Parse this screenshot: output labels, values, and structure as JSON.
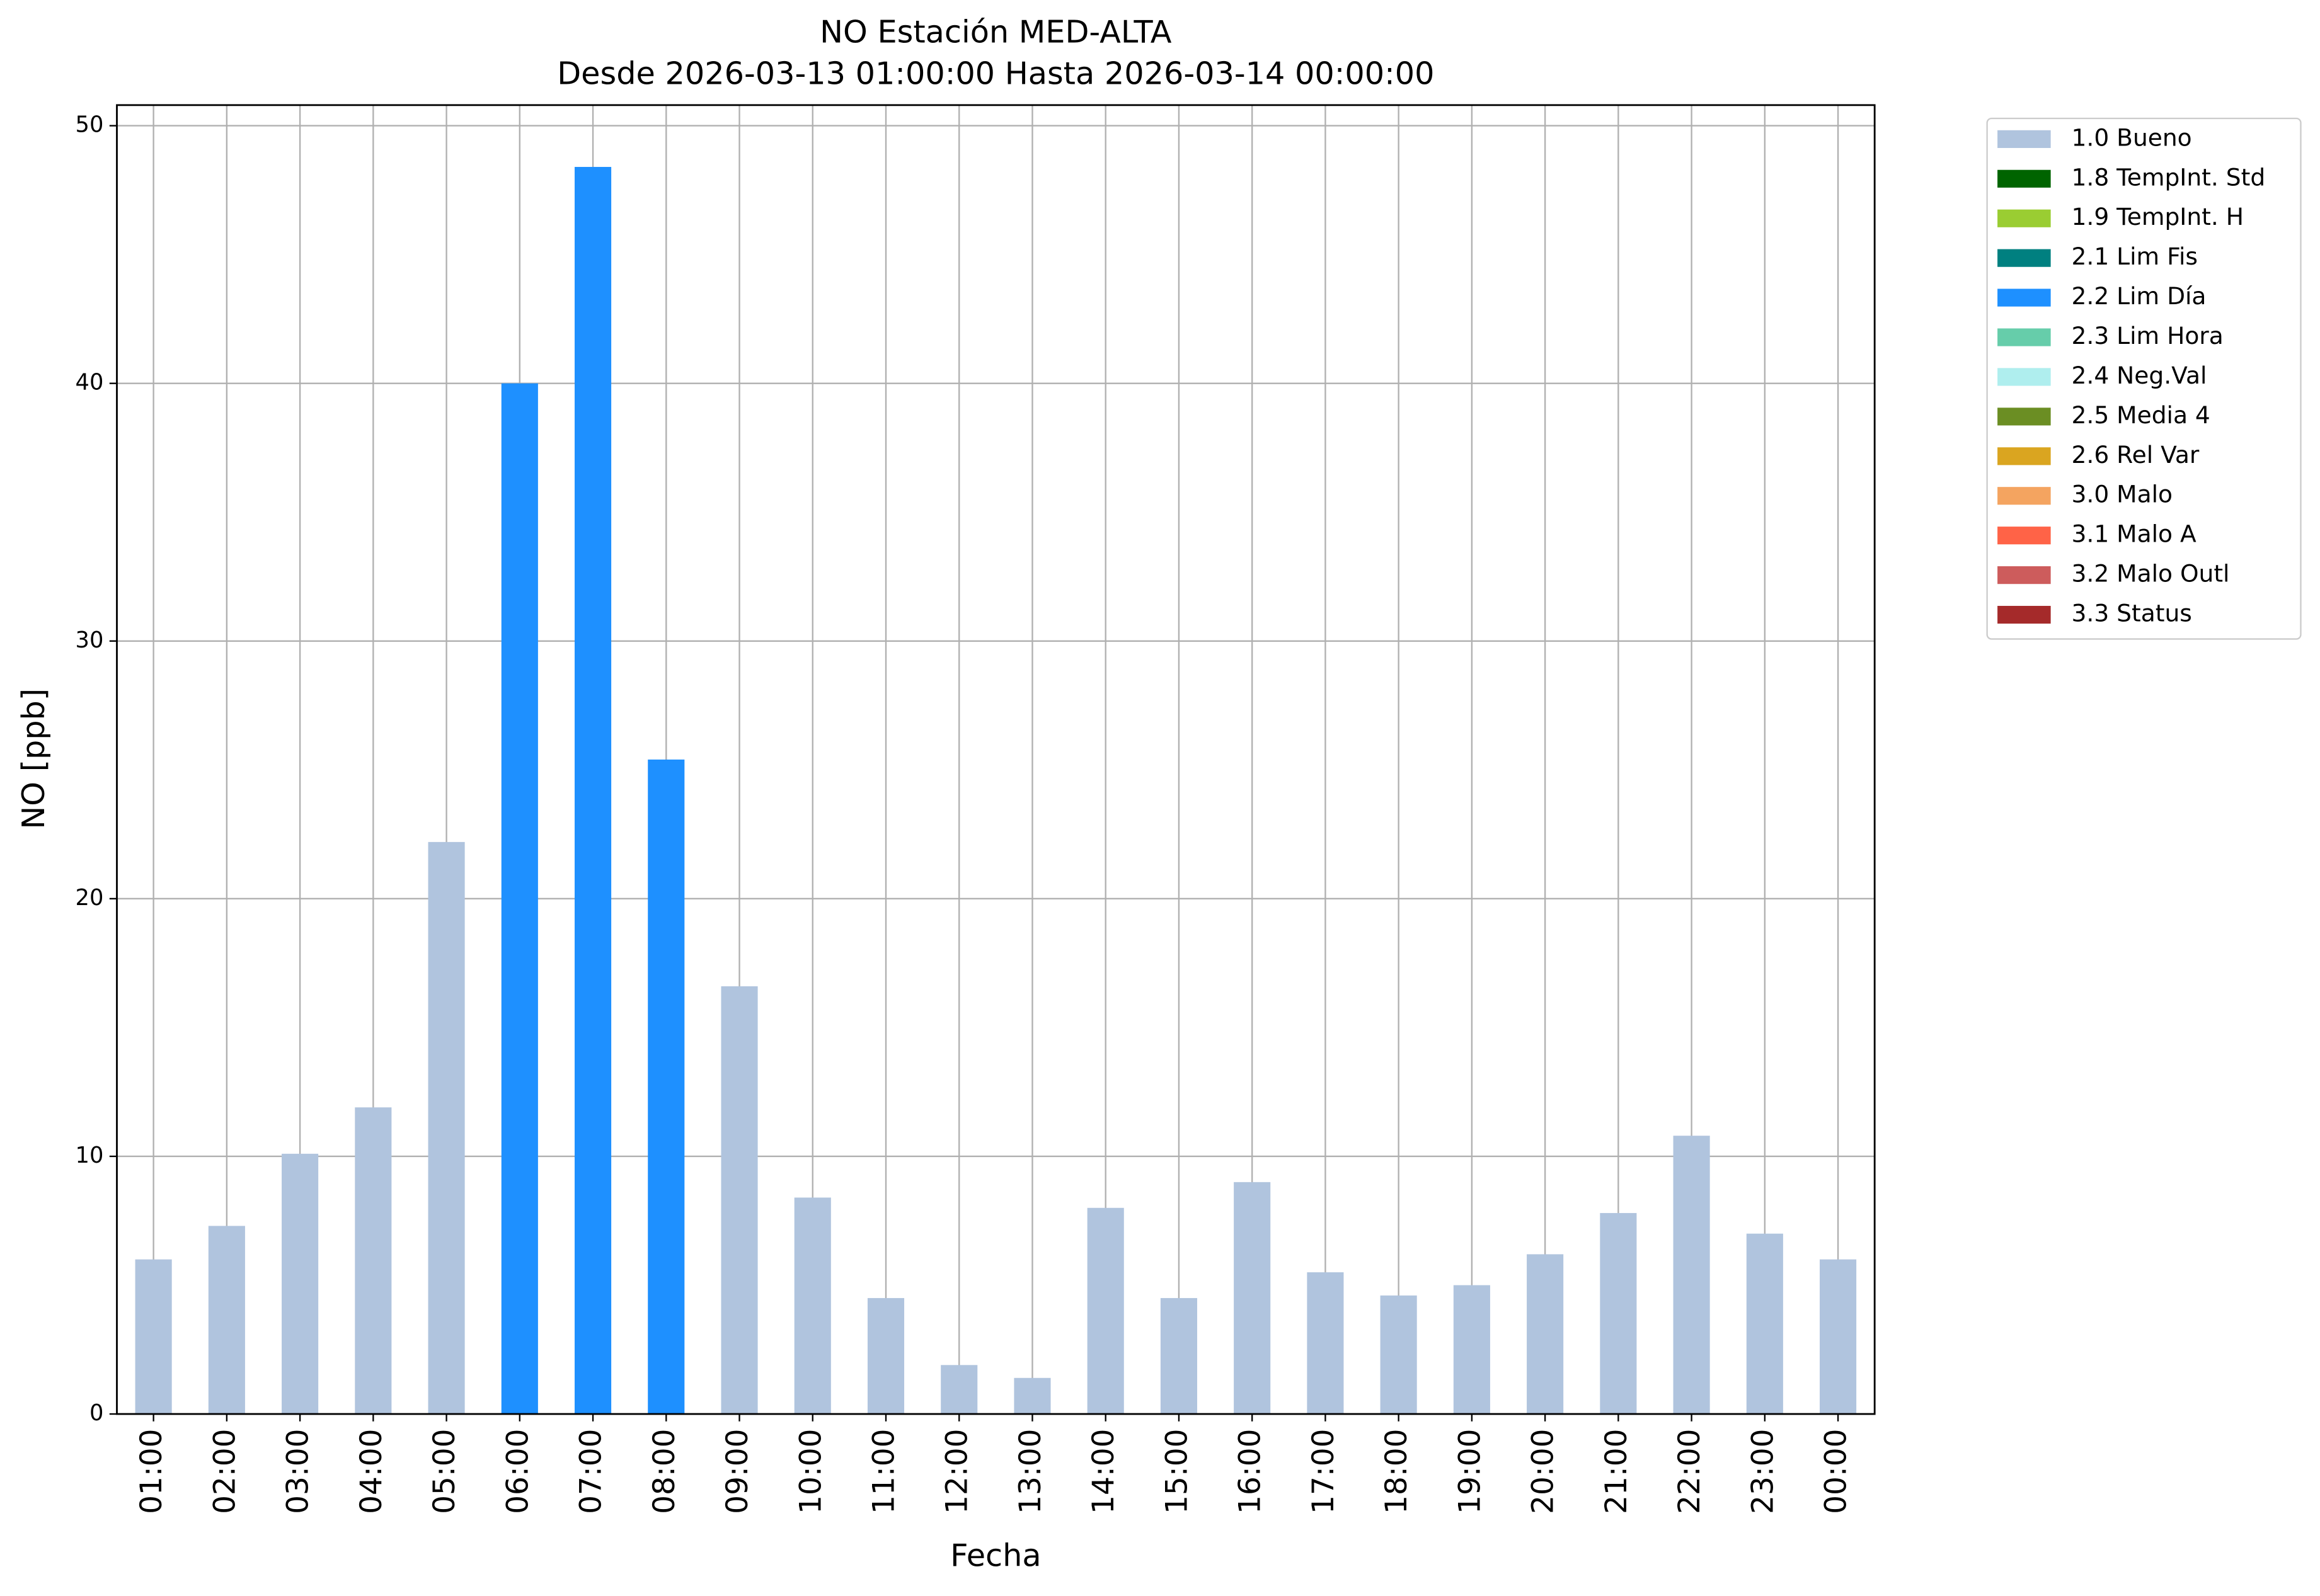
{
  "chart_data": {
    "type": "stacked-bar",
    "title": "NO Estación MED-ALTA",
    "subtitle": "Desde 2026-03-13 01:00:00 Hasta 2026-03-14 00:00:00",
    "xlabel": "Fecha",
    "ylabel": "NO [ppb]",
    "categories": [
      "01:00",
      "02:00",
      "03:00",
      "04:00",
      "05:00",
      "06:00",
      "07:00",
      "08:00",
      "09:00",
      "10:00",
      "11:00",
      "12:00",
      "13:00",
      "14:00",
      "15:00",
      "16:00",
      "17:00",
      "18:00",
      "19:00",
      "20:00",
      "21:00",
      "22:00",
      "23:00",
      "00:00"
    ],
    "series": [
      {
        "name": "1.0 Bueno",
        "color": "#b0c4de",
        "values": [
          6.0,
          7.3,
          10.1,
          11.9,
          22.2,
          null,
          null,
          null,
          16.6,
          8.4,
          4.5,
          1.9,
          1.4,
          8.0,
          4.5,
          9.0,
          5.5,
          4.6,
          5.0,
          6.2,
          7.8,
          10.8,
          7.0,
          6.0
        ]
      },
      {
        "name": "1.8 TempInt. Std",
        "color": "#006400",
        "values": [
          null,
          null,
          null,
          null,
          null,
          null,
          null,
          null,
          null,
          null,
          null,
          null,
          null,
          null,
          null,
          null,
          null,
          null,
          null,
          null,
          null,
          null,
          null,
          null
        ]
      },
      {
        "name": "1.9 TempInt. H",
        "color": "#9acd32",
        "values": [
          null,
          null,
          null,
          null,
          null,
          null,
          null,
          null,
          null,
          null,
          null,
          null,
          null,
          null,
          null,
          null,
          null,
          null,
          null,
          null,
          null,
          null,
          null,
          null
        ]
      },
      {
        "name": "2.1 Lim Fis",
        "color": "#008080",
        "values": [
          null,
          null,
          null,
          null,
          null,
          null,
          null,
          null,
          null,
          null,
          null,
          null,
          null,
          null,
          null,
          null,
          null,
          null,
          null,
          null,
          null,
          null,
          null,
          null
        ]
      },
      {
        "name": "2.2 Lim Día",
        "color": "#1e90ff",
        "values": [
          null,
          null,
          null,
          null,
          null,
          40.0,
          48.4,
          25.4,
          null,
          null,
          null,
          null,
          null,
          null,
          null,
          null,
          null,
          null,
          null,
          null,
          null,
          null,
          null,
          null
        ]
      },
      {
        "name": "2.3 Lim Hora",
        "color": "#66cdaa",
        "values": [
          null,
          null,
          null,
          null,
          null,
          null,
          null,
          null,
          null,
          null,
          null,
          null,
          null,
          null,
          null,
          null,
          null,
          null,
          null,
          null,
          null,
          null,
          null,
          null
        ]
      },
      {
        "name": "2.4 Neg.Val",
        "color": "#afeeee",
        "values": [
          null,
          null,
          null,
          null,
          null,
          null,
          null,
          null,
          null,
          null,
          null,
          null,
          null,
          null,
          null,
          null,
          null,
          null,
          null,
          null,
          null,
          null,
          null,
          null
        ]
      },
      {
        "name": "2.5 Media 4",
        "color": "#6b8e23",
        "values": [
          null,
          null,
          null,
          null,
          null,
          null,
          null,
          null,
          null,
          null,
          null,
          null,
          null,
          null,
          null,
          null,
          null,
          null,
          null,
          null,
          null,
          null,
          null,
          null
        ]
      },
      {
        "name": "2.6 Rel Var",
        "color": "#daa520",
        "values": [
          null,
          null,
          null,
          null,
          null,
          null,
          null,
          null,
          null,
          null,
          null,
          null,
          null,
          null,
          null,
          null,
          null,
          null,
          null,
          null,
          null,
          null,
          null,
          null
        ]
      },
      {
        "name": "3.0 Malo",
        "color": "#f4a460",
        "values": [
          null,
          null,
          null,
          null,
          null,
          null,
          null,
          null,
          null,
          null,
          null,
          null,
          null,
          null,
          null,
          null,
          null,
          null,
          null,
          null,
          null,
          null,
          null,
          null
        ]
      },
      {
        "name": "3.1 Malo A",
        "color": "#ff6347",
        "values": [
          null,
          null,
          null,
          null,
          null,
          null,
          null,
          null,
          null,
          null,
          null,
          null,
          null,
          null,
          null,
          null,
          null,
          null,
          null,
          null,
          null,
          null,
          null,
          null
        ]
      },
      {
        "name": "3.2 Malo Outl",
        "color": "#cd5c5c",
        "values": [
          null,
          null,
          null,
          null,
          null,
          null,
          null,
          null,
          null,
          null,
          null,
          null,
          null,
          null,
          null,
          null,
          null,
          null,
          null,
          null,
          null,
          null,
          null,
          null
        ]
      },
      {
        "name": "3.3 Status",
        "color": "#a52a2a",
        "values": [
          null,
          null,
          null,
          null,
          null,
          null,
          null,
          null,
          null,
          null,
          null,
          null,
          null,
          null,
          null,
          null,
          null,
          null,
          null,
          null,
          null,
          null,
          null,
          null
        ]
      }
    ],
    "ylim": [
      0,
      50.8
    ],
    "yticks": [
      0,
      10,
      20,
      30,
      40,
      50
    ],
    "grid": true,
    "legend": "outside-upper-right"
  }
}
